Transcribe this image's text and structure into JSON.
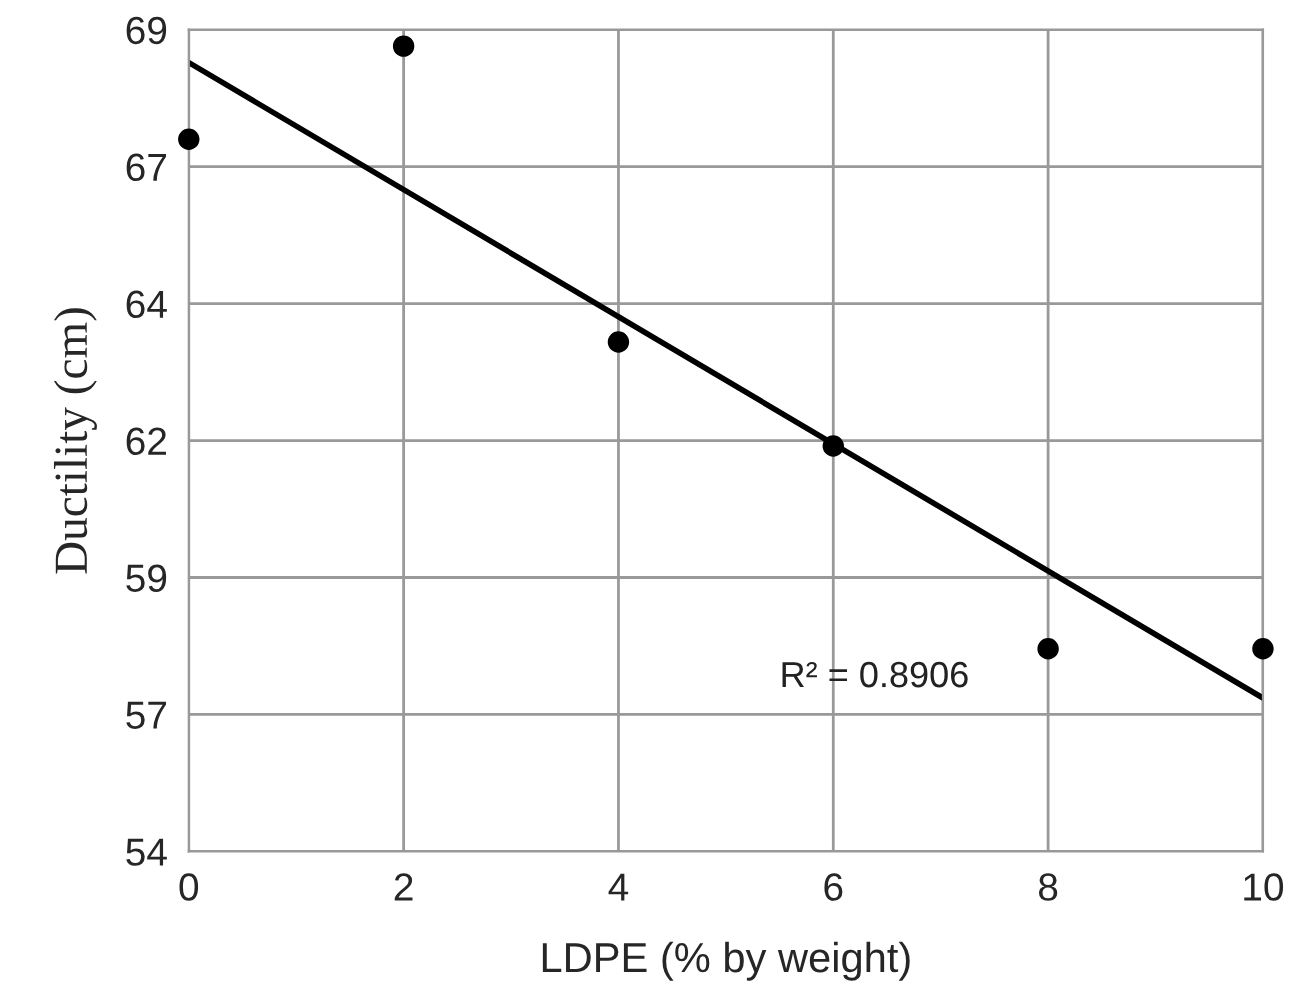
{
  "chart_data": {
    "type": "scatter",
    "xlabel": "LDPE (% by weight)",
    "ylabel": "Ductility (cm)",
    "series": [
      {
        "color": "#000000",
        "x": [
          0,
          2,
          4,
          6,
          8,
          10
        ],
        "values": [
          67.0,
          68.7,
          63.3,
          61.4,
          57.7,
          57.7
        ],
        "marker": "circle"
      },
      {
        "type": "line",
        "color": "#000000",
        "x": [
          0,
          10
        ],
        "values": [
          68.4,
          56.8
        ],
        "marker": "none",
        "line_style": "solid"
      }
    ],
    "annotations": [
      "R² = 0.8906"
    ],
    "xlim": [
      0,
      10
    ],
    "xticks": [
      0,
      2,
      4,
      6,
      8,
      10
    ],
    "ylim": [
      54,
      69
    ],
    "yticks": [
      54,
      {
        "value": 56.5,
        "label": "57"
      },
      59,
      {
        "value": 61.5,
        "label": "62"
      },
      64,
      {
        "value": 66.5,
        "label": "67"
      },
      69
    ],
    "grid": true,
    "legend": false
  }
}
